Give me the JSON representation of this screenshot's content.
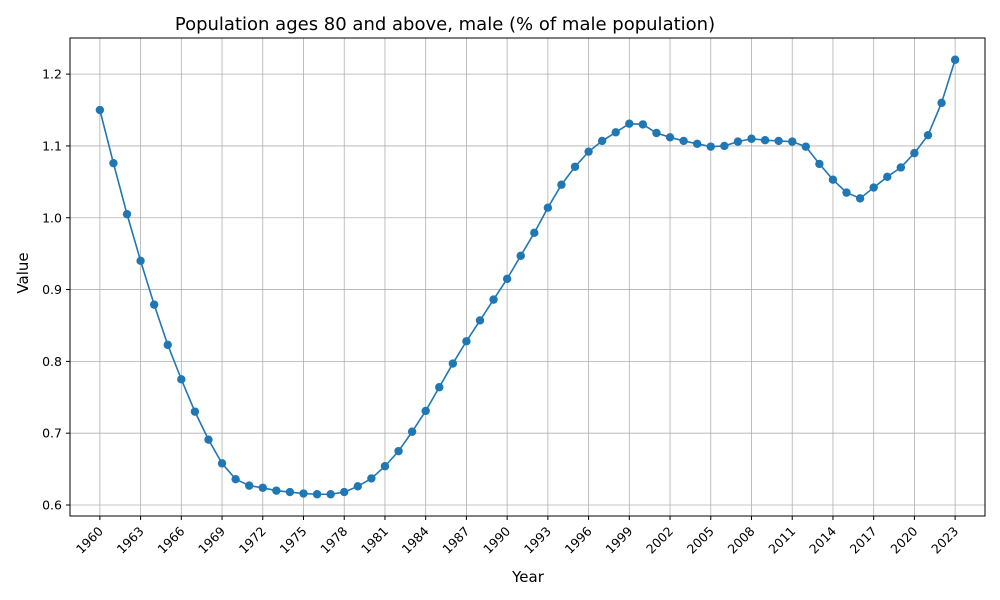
{
  "chart_data": {
    "type": "line",
    "title": "Population ages 80 and above, male (% of male population)",
    "xlabel": "Year",
    "ylabel": "Value",
    "x": [
      1960,
      1961,
      1962,
      1963,
      1964,
      1965,
      1966,
      1967,
      1968,
      1969,
      1970,
      1971,
      1972,
      1973,
      1974,
      1975,
      1976,
      1977,
      1978,
      1979,
      1980,
      1981,
      1982,
      1983,
      1984,
      1985,
      1986,
      1987,
      1988,
      1989,
      1990,
      1991,
      1992,
      1993,
      1994,
      1995,
      1996,
      1997,
      1998,
      1999,
      2000,
      2001,
      2002,
      2003,
      2004,
      2005,
      2006,
      2007,
      2008,
      2009,
      2010,
      2011,
      2012,
      2013,
      2014,
      2015,
      2016,
      2017,
      2018,
      2019,
      2020,
      2021,
      2022,
      2023
    ],
    "series": [
      {
        "values": [
          1.15,
          1.076,
          1.005,
          0.94,
          0.879,
          0.823,
          0.775,
          0.73,
          0.691,
          0.658,
          0.636,
          0.627,
          0.624,
          0.62,
          0.618,
          0.616,
          0.615,
          0.615,
          0.618,
          0.626,
          0.637,
          0.654,
          0.675,
          0.702,
          0.731,
          0.764,
          0.797,
          0.828,
          0.857,
          0.886,
          0.915,
          0.947,
          0.979,
          1.014,
          1.046,
          1.071,
          1.092,
          1.107,
          1.119,
          1.131,
          1.13,
          1.118,
          1.112,
          1.107,
          1.103,
          1.099,
          1.1,
          1.106,
          1.11,
          1.108,
          1.107,
          1.106,
          1.099,
          1.075,
          1.053,
          1.035,
          1.027,
          1.042,
          1.057,
          1.07,
          1.09,
          1.115,
          1.16,
          1.22
        ],
        "color": "#1f77b4"
      }
    ],
    "x_ticks": [
      "1960",
      "1963",
      "1966",
      "1969",
      "1972",
      "1975",
      "1978",
      "1981",
      "1984",
      "1987",
      "1990",
      "1993",
      "1996",
      "1999",
      "2002",
      "2005",
      "2008",
      "2011",
      "2014",
      "2017",
      "2020",
      "2023"
    ],
    "y_ticks": [
      "0.6",
      "0.7",
      "0.8",
      "0.9",
      "1.0",
      "1.1",
      "1.2"
    ],
    "xlim": [
      1957.8,
      2025.2
    ],
    "ylim": [
      0.5847,
      1.2503
    ],
    "grid": true,
    "legend": "none"
  }
}
